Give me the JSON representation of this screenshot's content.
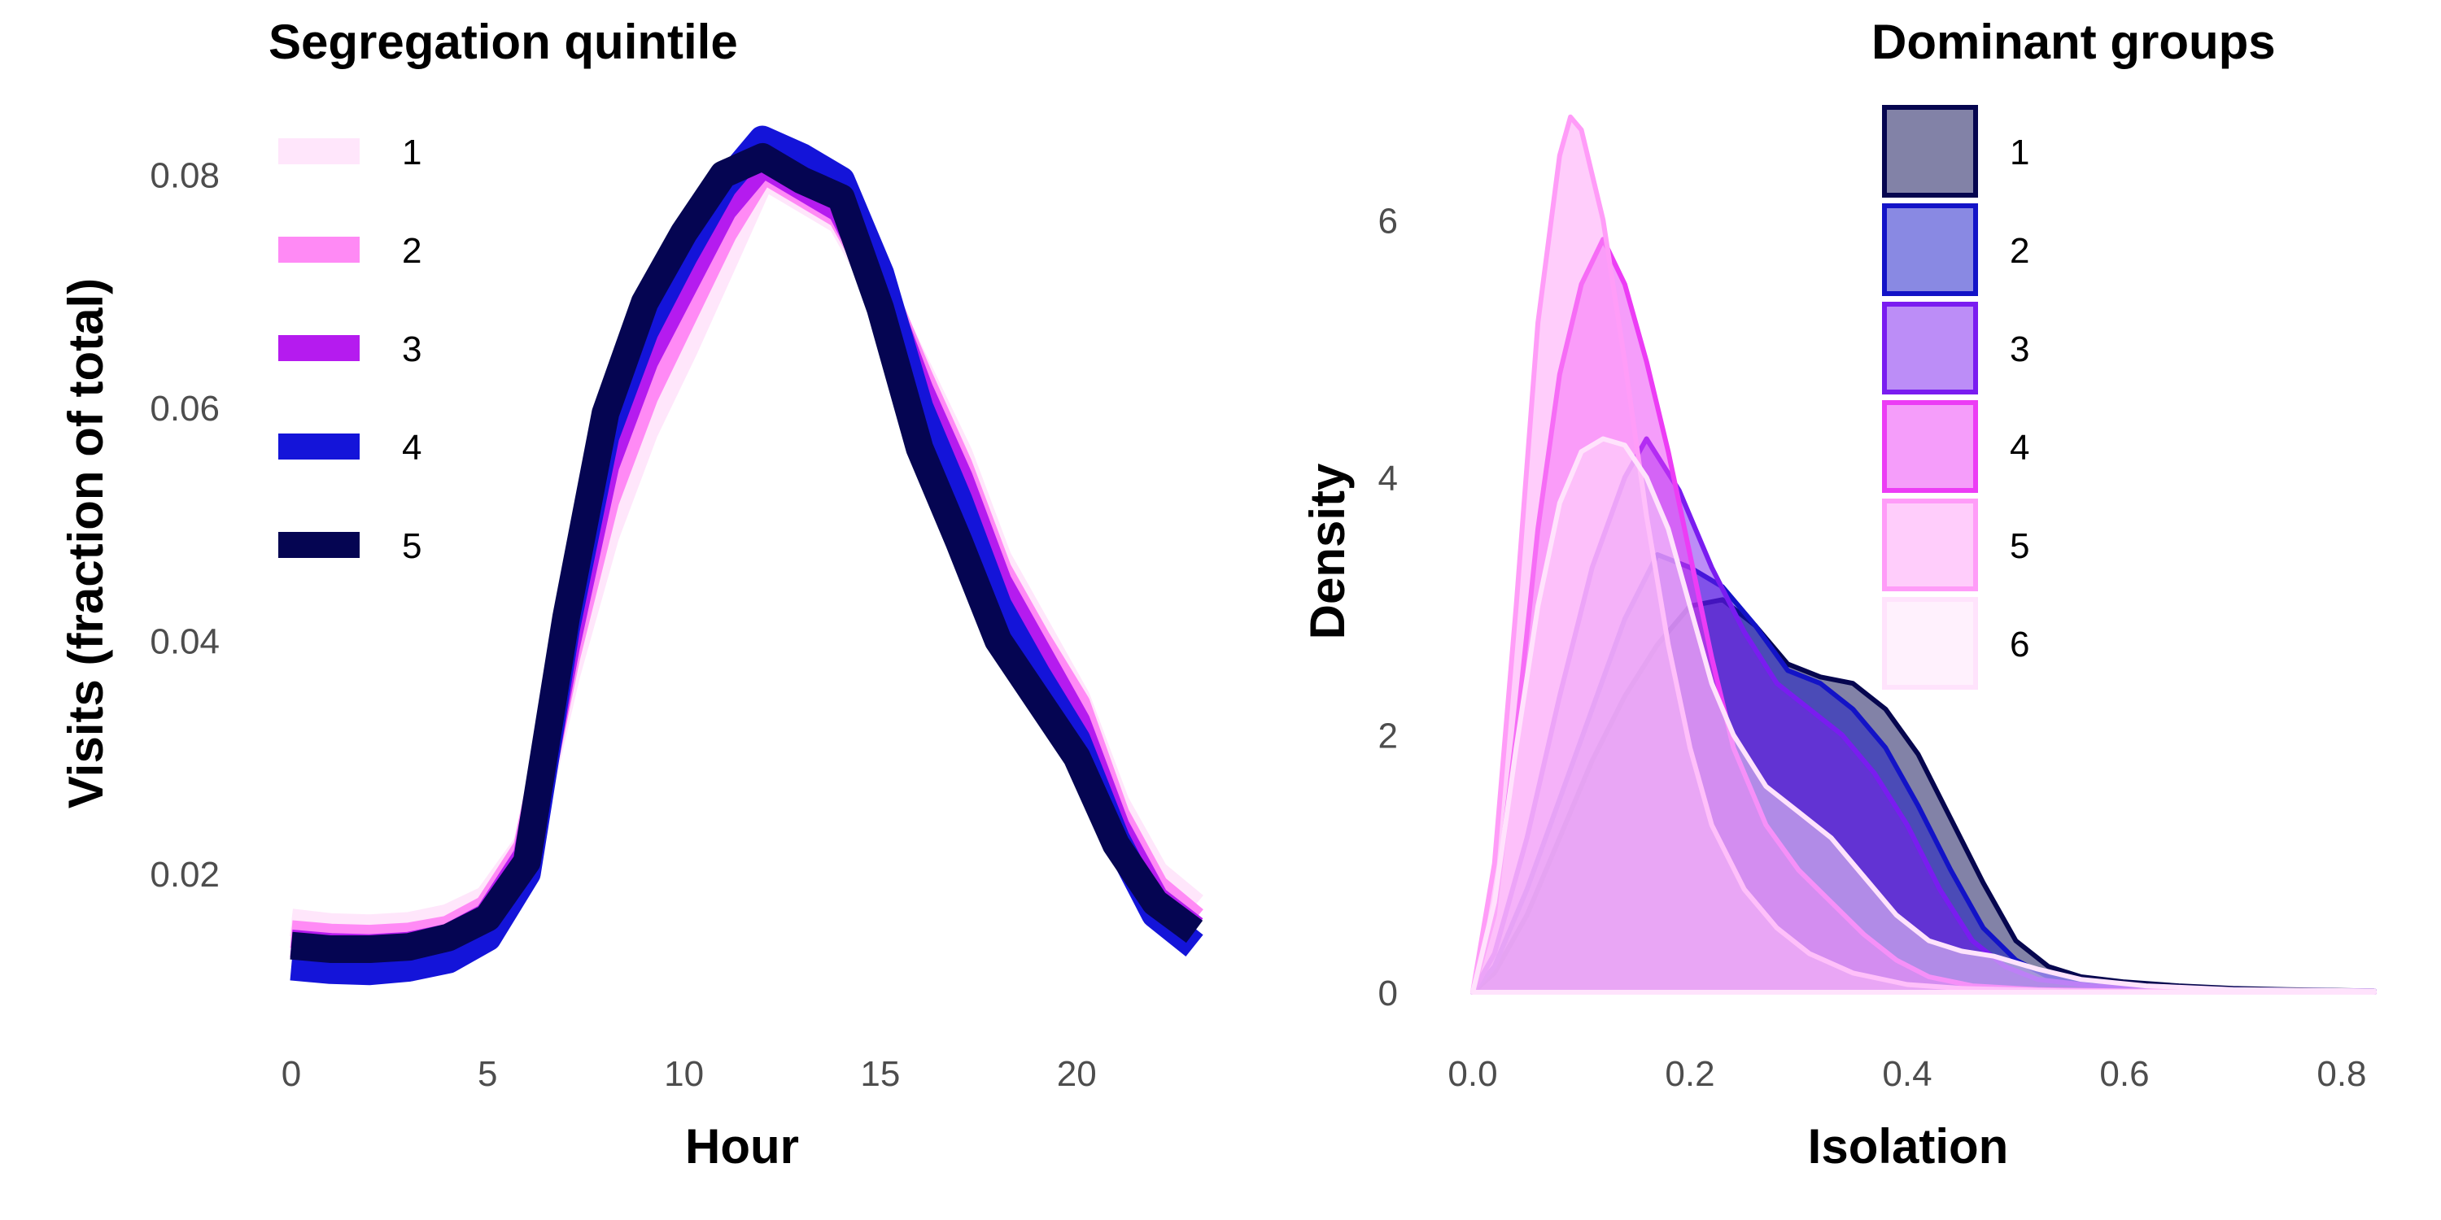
{
  "chart_data": [
    {
      "type": "line",
      "xlabel": "Hour",
      "ylabel": "Visits (fraction of total)",
      "xlim": [
        0,
        23
      ],
      "ylim": [
        0.0105,
        0.0845
      ],
      "x_ticks": [
        0,
        5,
        10,
        15,
        20
      ],
      "y_ticks": [
        0.02,
        0.04,
        0.06,
        0.08
      ],
      "y_tick_labels": [
        "0.02",
        "0.04",
        "0.06",
        "0.08"
      ],
      "grid": false,
      "legend": {
        "title": "Segregation quintile",
        "position": "top-left"
      },
      "x": [
        0,
        1,
        2,
        3,
        4,
        5,
        6,
        7,
        8,
        9,
        10,
        11,
        12,
        13,
        14,
        15,
        16,
        17,
        18,
        19,
        20,
        21,
        22,
        23
      ],
      "series": [
        {
          "name": "1",
          "color": "#ffe6fb",
          "values": [
            0.0158,
            0.0154,
            0.0153,
            0.0155,
            0.0162,
            0.0178,
            0.0225,
            0.037,
            0.049,
            0.058,
            0.065,
            0.0725,
            0.08,
            0.078,
            0.076,
            0.07,
            0.063,
            0.056,
            0.047,
            0.041,
            0.035,
            0.026,
            0.02,
            0.0172
          ]
        },
        {
          "name": "2",
          "color": "#ff8af5",
          "values": [
            0.0148,
            0.0145,
            0.0144,
            0.0146,
            0.0152,
            0.017,
            0.0222,
            0.0385,
            0.052,
            0.061,
            0.068,
            0.075,
            0.0805,
            0.0785,
            0.0765,
            0.0705,
            0.0625,
            0.055,
            0.046,
            0.04,
            0.0345,
            0.025,
            0.0188,
            0.016
          ]
        },
        {
          "name": "3",
          "color": "#b51bef",
          "values": [
            0.014,
            0.0137,
            0.0136,
            0.0138,
            0.0145,
            0.0163,
            0.0215,
            0.0395,
            0.055,
            0.064,
            0.0705,
            0.077,
            0.081,
            0.079,
            0.077,
            0.0705,
            0.0615,
            0.054,
            0.045,
            0.039,
            0.033,
            0.024,
            0.0178,
            0.0152
          ]
        },
        {
          "name": "4",
          "color": "#1414d9",
          "values": [
            0.012,
            0.0117,
            0.0116,
            0.0119,
            0.0126,
            0.0145,
            0.02,
            0.041,
            0.0575,
            0.0665,
            0.073,
            0.079,
            0.083,
            0.0815,
            0.0795,
            0.0715,
            0.06,
            0.052,
            0.043,
            0.037,
            0.0315,
            0.023,
            0.0165,
            0.0138
          ]
        },
        {
          "name": "5",
          "color": "#050552",
          "values": [
            0.0138,
            0.0135,
            0.0135,
            0.0137,
            0.0145,
            0.0162,
            0.021,
            0.042,
            0.0595,
            0.069,
            0.075,
            0.08,
            0.0815,
            0.0795,
            0.078,
            0.0685,
            0.0565,
            0.0485,
            0.04,
            0.035,
            0.03,
            0.0225,
            0.0175,
            0.015
          ]
        }
      ]
    },
    {
      "type": "area",
      "subtype": "density",
      "xlabel": "Isolation",
      "ylabel": "Density",
      "xlim": [
        0,
        0.83
      ],
      "ylim": [
        0,
        6.9
      ],
      "x_ticks": [
        0.0,
        0.2,
        0.4,
        0.6,
        0.8
      ],
      "x_tick_labels": [
        "0.0",
        "0.2",
        "0.4",
        "0.6",
        "0.8"
      ],
      "y_ticks": [
        0,
        2,
        4,
        6
      ],
      "grid": false,
      "legend": {
        "title": "Dominant groups",
        "position": "top-right"
      },
      "series": [
        {
          "name": "1",
          "color": "#06064f",
          "points": [
            [
              0,
              0
            ],
            [
              0.02,
              0.15
            ],
            [
              0.05,
              0.6
            ],
            [
              0.08,
              1.2
            ],
            [
              0.11,
              1.8
            ],
            [
              0.14,
              2.3
            ],
            [
              0.17,
              2.7
            ],
            [
              0.2,
              3.0
            ],
            [
              0.23,
              3.05
            ],
            [
              0.26,
              2.85
            ],
            [
              0.29,
              2.55
            ],
            [
              0.32,
              2.45
            ],
            [
              0.35,
              2.4
            ],
            [
              0.38,
              2.2
            ],
            [
              0.41,
              1.85
            ],
            [
              0.44,
              1.35
            ],
            [
              0.47,
              0.85
            ],
            [
              0.5,
              0.4
            ],
            [
              0.53,
              0.2
            ],
            [
              0.56,
              0.12
            ],
            [
              0.6,
              0.08
            ],
            [
              0.65,
              0.05
            ],
            [
              0.7,
              0.03
            ],
            [
              0.75,
              0.02
            ],
            [
              0.83,
              0.01
            ]
          ]
        },
        {
          "name": "2",
          "color": "#1313c7",
          "points": [
            [
              0,
              0
            ],
            [
              0.02,
              0.2
            ],
            [
              0.05,
              0.8
            ],
            [
              0.08,
              1.5
            ],
            [
              0.11,
              2.2
            ],
            [
              0.14,
              2.9
            ],
            [
              0.17,
              3.4
            ],
            [
              0.2,
              3.3
            ],
            [
              0.23,
              3.15
            ],
            [
              0.26,
              2.85
            ],
            [
              0.29,
              2.5
            ],
            [
              0.32,
              2.4
            ],
            [
              0.35,
              2.2
            ],
            [
              0.38,
              1.9
            ],
            [
              0.41,
              1.45
            ],
            [
              0.44,
              0.95
            ],
            [
              0.47,
              0.5
            ],
            [
              0.5,
              0.25
            ],
            [
              0.53,
              0.12
            ],
            [
              0.57,
              0.06
            ],
            [
              0.62,
              0.04
            ],
            [
              0.7,
              0.02
            ],
            [
              0.83,
              0.01
            ]
          ]
        },
        {
          "name": "3",
          "color": "#7a1cf0",
          "points": [
            [
              0,
              0
            ],
            [
              0.02,
              0.3
            ],
            [
              0.05,
              1.2
            ],
            [
              0.08,
              2.3
            ],
            [
              0.11,
              3.3
            ],
            [
              0.14,
              4.0
            ],
            [
              0.16,
              4.3
            ],
            [
              0.19,
              3.9
            ],
            [
              0.22,
              3.3
            ],
            [
              0.25,
              2.8
            ],
            [
              0.28,
              2.4
            ],
            [
              0.31,
              2.2
            ],
            [
              0.34,
              2.0
            ],
            [
              0.37,
              1.7
            ],
            [
              0.4,
              1.3
            ],
            [
              0.43,
              0.8
            ],
            [
              0.46,
              0.4
            ],
            [
              0.49,
              0.2
            ],
            [
              0.52,
              0.1
            ],
            [
              0.57,
              0.05
            ],
            [
              0.65,
              0.02
            ],
            [
              0.83,
              0.01
            ]
          ]
        },
        {
          "name": "4",
          "color": "#ec3cf5",
          "points": [
            [
              0,
              0
            ],
            [
              0.02,
              0.6
            ],
            [
              0.04,
              2.0
            ],
            [
              0.06,
              3.6
            ],
            [
              0.08,
              4.8
            ],
            [
              0.1,
              5.5
            ],
            [
              0.12,
              5.85
            ],
            [
              0.14,
              5.5
            ],
            [
              0.16,
              4.9
            ],
            [
              0.18,
              4.2
            ],
            [
              0.2,
              3.4
            ],
            [
              0.22,
              2.6
            ],
            [
              0.24,
              1.9
            ],
            [
              0.27,
              1.3
            ],
            [
              0.3,
              0.95
            ],
            [
              0.33,
              0.7
            ],
            [
              0.36,
              0.45
            ],
            [
              0.39,
              0.25
            ],
            [
              0.42,
              0.12
            ],
            [
              0.46,
              0.05
            ],
            [
              0.52,
              0.02
            ],
            [
              0.6,
              0.01
            ],
            [
              0.83,
              0
            ]
          ]
        },
        {
          "name": "5",
          "color": "#ff9cf8",
          "points": [
            [
              0,
              0
            ],
            [
              0.02,
              1.0
            ],
            [
              0.04,
              3.0
            ],
            [
              0.06,
              5.2
            ],
            [
              0.08,
              6.5
            ],
            [
              0.09,
              6.8
            ],
            [
              0.1,
              6.7
            ],
            [
              0.12,
              6.0
            ],
            [
              0.14,
              4.9
            ],
            [
              0.16,
              3.7
            ],
            [
              0.18,
              2.7
            ],
            [
              0.2,
              1.9
            ],
            [
              0.22,
              1.3
            ],
            [
              0.25,
              0.8
            ],
            [
              0.28,
              0.5
            ],
            [
              0.31,
              0.3
            ],
            [
              0.35,
              0.15
            ],
            [
              0.4,
              0.06
            ],
            [
              0.45,
              0.03
            ],
            [
              0.55,
              0.01
            ],
            [
              0.83,
              0
            ]
          ]
        },
        {
          "name": "6",
          "color": "#ffe3fc",
          "points": [
            [
              0,
              0
            ],
            [
              0.02,
              0.7
            ],
            [
              0.04,
              1.9
            ],
            [
              0.06,
              3.0
            ],
            [
              0.08,
              3.8
            ],
            [
              0.1,
              4.2
            ],
            [
              0.12,
              4.3
            ],
            [
              0.14,
              4.25
            ],
            [
              0.16,
              4.0
            ],
            [
              0.18,
              3.6
            ],
            [
              0.2,
              3.0
            ],
            [
              0.22,
              2.4
            ],
            [
              0.24,
              2.0
            ],
            [
              0.27,
              1.6
            ],
            [
              0.3,
              1.4
            ],
            [
              0.33,
              1.2
            ],
            [
              0.36,
              0.9
            ],
            [
              0.39,
              0.6
            ],
            [
              0.42,
              0.4
            ],
            [
              0.45,
              0.32
            ],
            [
              0.48,
              0.28
            ],
            [
              0.52,
              0.18
            ],
            [
              0.56,
              0.1
            ],
            [
              0.62,
              0.05
            ],
            [
              0.7,
              0.02
            ],
            [
              0.83,
              0.01
            ]
          ]
        }
      ]
    }
  ]
}
